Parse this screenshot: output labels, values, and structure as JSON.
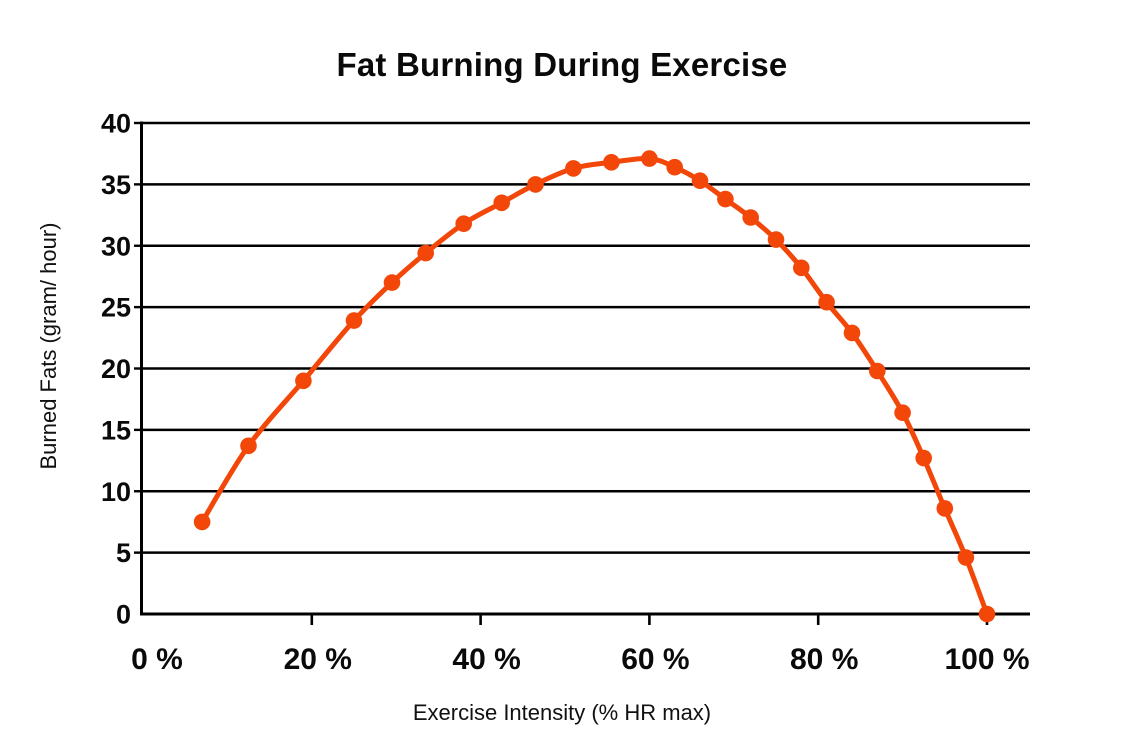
{
  "chart_data": {
    "type": "line",
    "title": "Fat Burning During Exercise",
    "xlabel": "Exercise Intensity (% HR max)",
    "ylabel": "Burned Fats (gram/ hour)",
    "xlim": [
      0,
      100
    ],
    "ylim": [
      0,
      40
    ],
    "x_ticks": [
      {
        "value": 0,
        "label": "0 %"
      },
      {
        "value": 20,
        "label": "20 %"
      },
      {
        "value": 40,
        "label": "40 %"
      },
      {
        "value": 60,
        "label": "60 %"
      },
      {
        "value": 80,
        "label": "80 %"
      },
      {
        "value": 100,
        "label": "100 %"
      }
    ],
    "y_ticks": [
      {
        "value": 0,
        "label": "0"
      },
      {
        "value": 5,
        "label": "5"
      },
      {
        "value": 10,
        "label": "10"
      },
      {
        "value": 15,
        "label": "15"
      },
      {
        "value": 20,
        "label": "20"
      },
      {
        "value": 25,
        "label": "25"
      },
      {
        "value": 30,
        "label": "30"
      },
      {
        "value": 35,
        "label": "35"
      },
      {
        "value": 40,
        "label": "40"
      }
    ],
    "grid": "horizontal",
    "legend": "none",
    "marker": "circle",
    "line_color": "#F24708",
    "marker_color": "#F24708",
    "axis_color": "#000000",
    "series": [
      {
        "name": "Burned fats (gram/hour)",
        "points": [
          [
            7,
            7.5
          ],
          [
            12.5,
            13.7
          ],
          [
            19,
            19.0
          ],
          [
            25,
            23.9
          ],
          [
            29.5,
            27.0
          ],
          [
            33.5,
            29.4
          ],
          [
            38,
            31.8
          ],
          [
            42.5,
            33.5
          ],
          [
            46.5,
            35.0
          ],
          [
            51,
            36.3
          ],
          [
            55.5,
            36.8
          ],
          [
            60,
            37.1
          ],
          [
            63,
            36.4
          ],
          [
            66,
            35.3
          ],
          [
            69,
            33.8
          ],
          [
            72,
            32.3
          ],
          [
            75,
            30.5
          ],
          [
            78,
            28.2
          ],
          [
            81,
            25.4
          ],
          [
            84,
            22.9
          ],
          [
            87,
            19.8
          ],
          [
            90,
            16.4
          ],
          [
            92.5,
            12.7
          ],
          [
            95,
            8.6
          ],
          [
            97.5,
            4.6
          ],
          [
            100,
            0
          ]
        ]
      }
    ]
  }
}
